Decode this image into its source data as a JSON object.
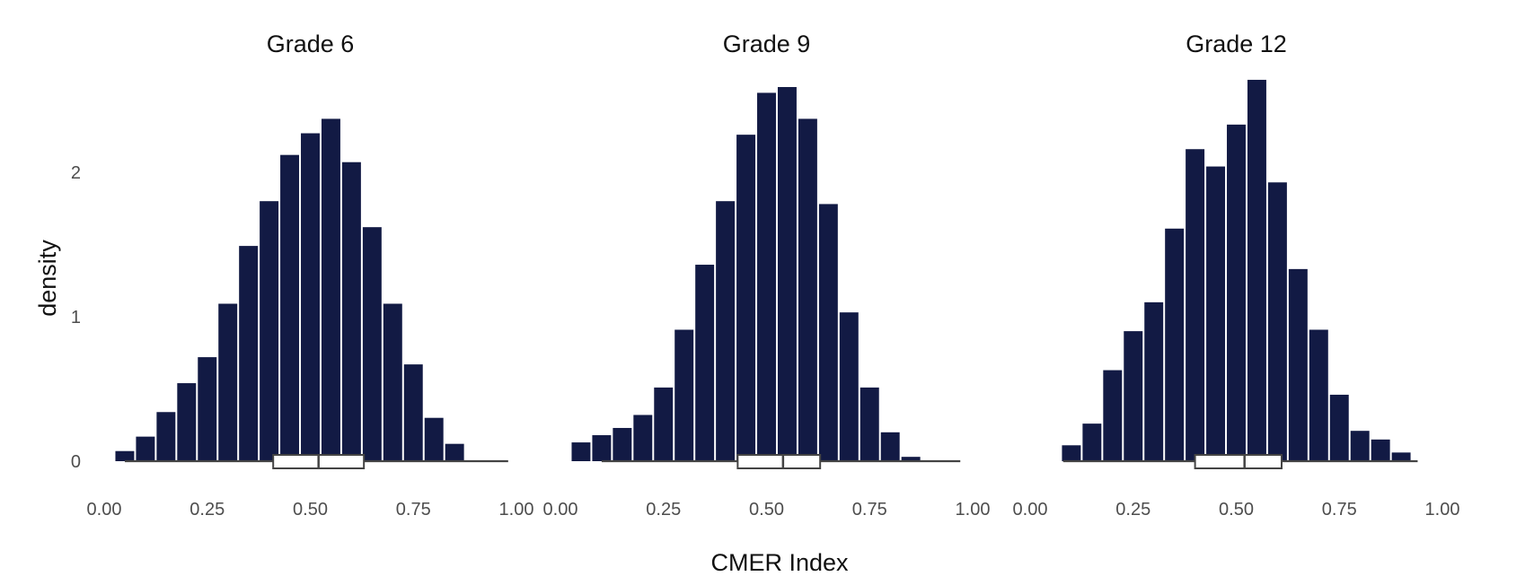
{
  "chart_data": {
    "type": "bar",
    "subtype": "faceted histogram with boxplot",
    "xlabel": "CMER Index",
    "ylabel": "density",
    "xlim": [
      0,
      1
    ],
    "ylim": [
      0,
      2.65
    ],
    "x_ticks": [
      "0.00",
      "0.25",
      "0.50",
      "0.75",
      "1.00"
    ],
    "y_ticks": [
      "0",
      "1",
      "2"
    ],
    "bin_width": 0.05,
    "bar_color": "#121a44",
    "grid": false,
    "legend": "none",
    "panels": [
      {
        "title": "Grade 6",
        "bin_centers": [
          0.05,
          0.1,
          0.15,
          0.2,
          0.25,
          0.3,
          0.35,
          0.4,
          0.45,
          0.5,
          0.55,
          0.6,
          0.65,
          0.7,
          0.75,
          0.8,
          0.85,
          0.9
        ],
        "density": [
          0.07,
          0.17,
          0.34,
          0.54,
          0.72,
          1.09,
          1.49,
          1.8,
          2.12,
          2.27,
          2.37,
          2.07,
          1.62,
          1.09,
          0.67,
          0.3,
          0.12,
          0.0
        ],
        "boxplot": {
          "whisker_low": 0.05,
          "q1": 0.41,
          "median": 0.52,
          "q3": 0.63,
          "whisker_high": 0.98
        }
      },
      {
        "title": "Grade 9",
        "bin_centers": [
          0.05,
          0.1,
          0.15,
          0.2,
          0.25,
          0.3,
          0.35,
          0.4,
          0.45,
          0.5,
          0.55,
          0.6,
          0.65,
          0.7,
          0.75,
          0.8,
          0.85,
          0.9
        ],
        "density": [
          0.13,
          0.18,
          0.23,
          0.32,
          0.51,
          0.91,
          1.36,
          1.8,
          2.26,
          2.55,
          2.59,
          2.37,
          1.78,
          1.03,
          0.51,
          0.2,
          0.03,
          0.0
        ],
        "boxplot": {
          "whisker_low": 0.1,
          "q1": 0.43,
          "median": 0.54,
          "q3": 0.63,
          "whisker_high": 0.97
        }
      },
      {
        "title": "Grade 12",
        "bin_centers": [
          0.05,
          0.1,
          0.15,
          0.2,
          0.25,
          0.3,
          0.35,
          0.4,
          0.45,
          0.5,
          0.55,
          0.6,
          0.65,
          0.7,
          0.75,
          0.8,
          0.85,
          0.9,
          0.95
        ],
        "density": [
          0.0,
          0.11,
          0.26,
          0.63,
          0.9,
          1.1,
          1.61,
          2.16,
          2.04,
          2.33,
          2.64,
          1.93,
          1.33,
          0.91,
          0.46,
          0.21,
          0.15,
          0.06,
          0.0
        ],
        "boxplot": {
          "whisker_low": 0.08,
          "q1": 0.4,
          "median": 0.52,
          "q3": 0.61,
          "whisker_high": 0.94
        }
      }
    ]
  }
}
